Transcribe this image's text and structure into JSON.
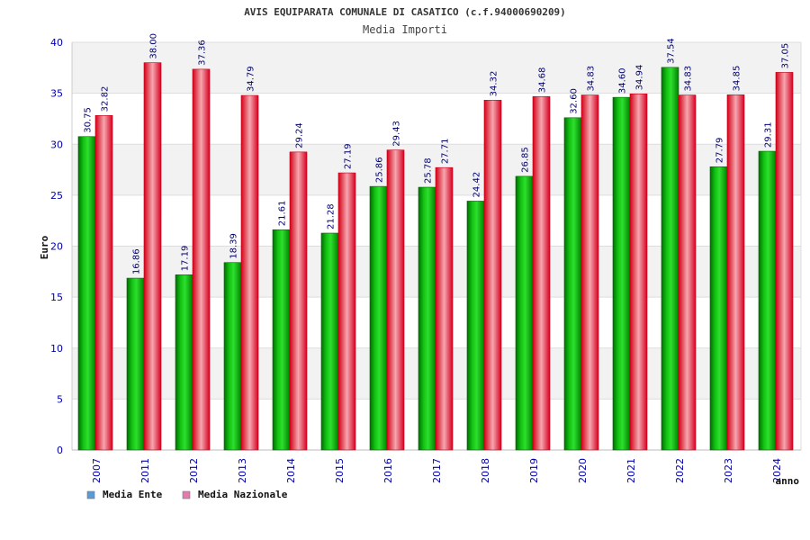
{
  "chart_data": {
    "type": "bar",
    "title": "AVIS EQUIPARATA COMUNALE DI CASATICO (c.f.94000690209)",
    "subtitle": "Media Importi",
    "xlabel": "anno",
    "ylabel": "Euro",
    "ylim": [
      0,
      40
    ],
    "yticks": [
      0,
      5,
      10,
      15,
      20,
      25,
      30,
      35,
      40
    ],
    "grid": true,
    "legend_position": "bottom-left",
    "categories": [
      "2007",
      "2011",
      "2012",
      "2013",
      "2014",
      "2015",
      "2016",
      "2017",
      "2018",
      "2019",
      "2020",
      "2021",
      "2022",
      "2023",
      "2024"
    ],
    "series": [
      {
        "name": "Media Ente",
        "legend_color": "#5b9bd5",
        "values": [
          30.75,
          16.86,
          17.19,
          18.39,
          21.61,
          21.28,
          25.86,
          25.78,
          24.42,
          26.85,
          32.6,
          34.6,
          37.54,
          27.79,
          29.31
        ],
        "labels": [
          "30.75",
          "16.86",
          "17.19",
          "18.39",
          "21.61",
          "21.28",
          "25.86",
          "25.78",
          "24.42",
          "26.85",
          "32.60",
          "34.60",
          "37.54",
          "27.79",
          "29.31"
        ]
      },
      {
        "name": "Media Nazionale",
        "legend_color": "#e07bb0",
        "values": [
          32.82,
          38.0,
          37.36,
          34.79,
          29.24,
          27.19,
          29.43,
          27.71,
          34.32,
          34.68,
          34.83,
          34.94,
          34.83,
          34.85,
          37.05
        ],
        "labels": [
          "32.82",
          "38.00",
          "37.36",
          "34.79",
          "29.24",
          "27.19",
          "29.43",
          "27.71",
          "34.32",
          "34.68",
          "34.83",
          "34.94",
          "34.83",
          "34.85",
          "37.05"
        ]
      }
    ]
  }
}
